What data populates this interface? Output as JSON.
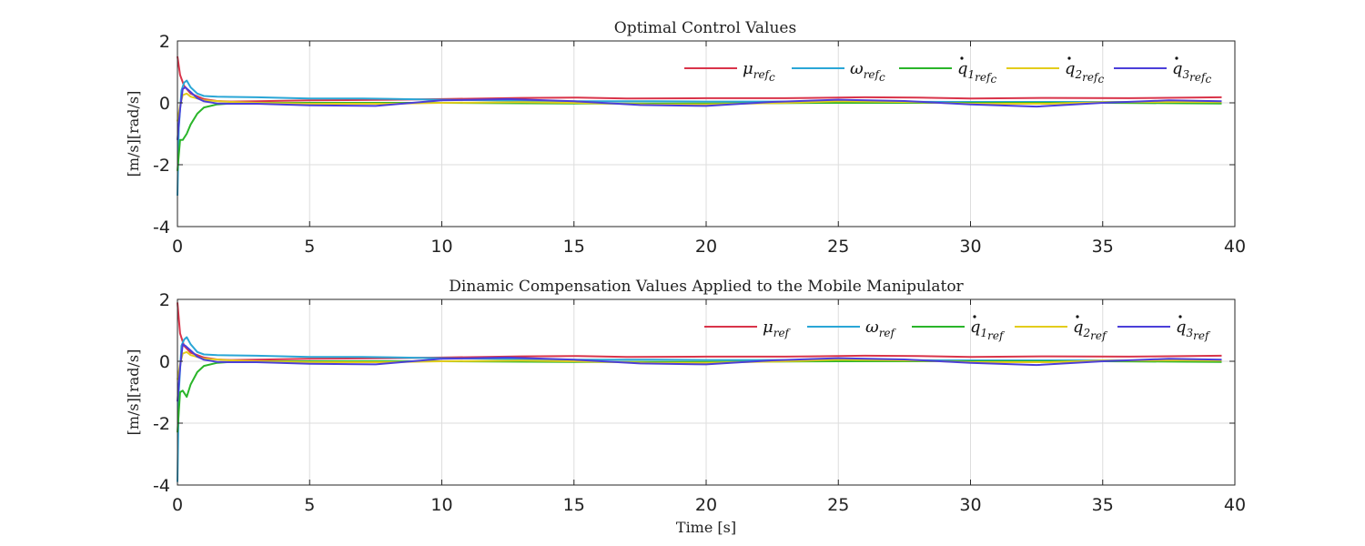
{
  "chart_data": [
    {
      "type": "line",
      "title": "Optimal Control Values",
      "xlabel": "",
      "ylabel": "[m/s][rad/s]",
      "xlim": [
        0,
        40
      ],
      "ylim": [
        -4,
        2
      ],
      "xticks": [
        "0",
        "5",
        "10",
        "15",
        "20",
        "25",
        "30",
        "35",
        "40"
      ],
      "yticks": [
        "2",
        "0",
        "-2",
        "-4"
      ],
      "grid": true,
      "legend": "top-right",
      "series": [
        {
          "name": "μ",
          "sub": "ref",
          "subsub": "c",
          "dot": false,
          "color": "#d9344a",
          "x": [
            0,
            0.1,
            0.25,
            0.5,
            1,
            1.5,
            2,
            3,
            5,
            8,
            10,
            13,
            15,
            17,
            20,
            23,
            26,
            28,
            30,
            33,
            36,
            39.5
          ],
          "y": [
            1.5,
            0.9,
            0.55,
            0.3,
            0.12,
            0.06,
            0.04,
            0.05,
            0.08,
            0.1,
            0.12,
            0.16,
            0.17,
            0.14,
            0.15,
            0.15,
            0.18,
            0.17,
            0.14,
            0.16,
            0.15,
            0.18
          ]
        },
        {
          "name": "ω",
          "sub": "ref",
          "subsub": "c",
          "dot": false,
          "color": "#2aa6d6",
          "x": [
            0,
            0.05,
            0.15,
            0.25,
            0.35,
            0.5,
            0.75,
            1,
            1.5,
            2,
            3,
            5,
            7,
            8,
            10,
            13,
            15,
            18,
            20,
            25,
            30,
            35,
            39.5
          ],
          "y": [
            -3.0,
            -0.8,
            0.4,
            0.65,
            0.72,
            0.5,
            0.3,
            0.22,
            0.2,
            0.19,
            0.18,
            0.14,
            0.14,
            0.13,
            0.1,
            0.07,
            0.05,
            0.05,
            0.04,
            0.04,
            0.03,
            0.03,
            0.03
          ]
        },
        {
          "name": "q",
          "sub": "1",
          "subsub": "ref",
          "subsubsub": "c",
          "dot": true,
          "color": "#2ab52a",
          "x": [
            0,
            0.1,
            0.2,
            0.35,
            0.5,
            0.75,
            1,
            1.5,
            2,
            3,
            5,
            10,
            15,
            20,
            25,
            30,
            35,
            39.5
          ],
          "y": [
            -2.2,
            -1.2,
            -1.2,
            -1.0,
            -0.7,
            -0.35,
            -0.15,
            -0.05,
            -0.02,
            0.0,
            0.0,
            0.0,
            -0.02,
            -0.02,
            0.0,
            0.0,
            0.0,
            -0.02
          ]
        },
        {
          "name": "q",
          "sub": "2",
          "subsub": "ref",
          "subsubsub": "c",
          "dot": true,
          "color": "#e3cc1c",
          "x": [
            0,
            0.1,
            0.2,
            0.35,
            0.5,
            1,
            2,
            3,
            5,
            8,
            10,
            13,
            15,
            18,
            20,
            23,
            25,
            28,
            30,
            33,
            35,
            38,
            39.5
          ],
          "y": [
            -0.6,
            -0.1,
            0.25,
            0.3,
            0.2,
            0.08,
            0.03,
            0.0,
            -0.03,
            -0.03,
            0.0,
            0.02,
            0.0,
            -0.05,
            -0.05,
            0.0,
            0.05,
            0.02,
            -0.03,
            -0.03,
            0.02,
            0.03,
            0.02
          ]
        },
        {
          "name": "q",
          "sub": "3",
          "subsub": "ref",
          "subsubsub": "c",
          "dot": true,
          "color": "#4b3fd9",
          "x": [
            0,
            0.1,
            0.2,
            0.3,
            0.5,
            0.75,
            1,
            1.5,
            2,
            3,
            5,
            7.5,
            10,
            12.5,
            15,
            17.5,
            20,
            22.5,
            25,
            27.5,
            30,
            32.5,
            35,
            37.5,
            39.5
          ],
          "y": [
            -1.2,
            -0.2,
            0.45,
            0.5,
            0.35,
            0.15,
            0.05,
            -0.02,
            -0.03,
            -0.03,
            -0.08,
            -0.1,
            0.08,
            0.12,
            0.05,
            -0.07,
            -0.1,
            0.03,
            0.1,
            0.06,
            -0.05,
            -0.12,
            0.0,
            0.08,
            0.05
          ]
        }
      ]
    },
    {
      "type": "line",
      "title": "Dinamic Compensation Values Applied to the Mobile Manipulator",
      "xlabel": "Time [s]",
      "ylabel": "[m/s][rad/s]",
      "xlim": [
        0,
        40
      ],
      "ylim": [
        -4,
        2
      ],
      "xticks": [
        "0",
        "5",
        "10",
        "15",
        "20",
        "25",
        "30",
        "35",
        "40"
      ],
      "yticks": [
        "2",
        "0",
        "-2",
        "-4"
      ],
      "grid": true,
      "legend": "top-right",
      "series": [
        {
          "name": "μ",
          "sub": "ref",
          "dot": false,
          "color": "#d9344a",
          "x": [
            0,
            0.1,
            0.25,
            0.5,
            1,
            1.5,
            2,
            3,
            5,
            8,
            10,
            13,
            15,
            17,
            20,
            23,
            26,
            28,
            30,
            33,
            36,
            39.5
          ],
          "y": [
            1.9,
            0.9,
            0.5,
            0.28,
            0.12,
            0.06,
            0.04,
            0.05,
            0.08,
            0.1,
            0.12,
            0.16,
            0.17,
            0.14,
            0.15,
            0.15,
            0.18,
            0.17,
            0.14,
            0.16,
            0.15,
            0.18
          ]
        },
        {
          "name": "ω",
          "sub": "ref",
          "dot": false,
          "color": "#2aa6d6",
          "x": [
            0,
            0.05,
            0.15,
            0.25,
            0.35,
            0.5,
            0.75,
            1,
            1.5,
            2,
            3,
            5,
            7,
            8,
            10,
            13,
            15,
            18,
            20,
            25,
            30,
            35,
            39.5
          ],
          "y": [
            -3.9,
            -1.0,
            0.5,
            0.7,
            0.78,
            0.55,
            0.3,
            0.22,
            0.2,
            0.19,
            0.18,
            0.14,
            0.14,
            0.13,
            0.1,
            0.07,
            0.05,
            0.05,
            0.04,
            0.04,
            0.03,
            0.03,
            0.03
          ]
        },
        {
          "name": "q",
          "sub": "1",
          "subsub": "ref",
          "dot": true,
          "color": "#2ab52a",
          "x": [
            0,
            0.1,
            0.2,
            0.35,
            0.5,
            0.75,
            1,
            1.5,
            2,
            3,
            5,
            10,
            15,
            20,
            25,
            30,
            35,
            39.5
          ],
          "y": [
            -2.3,
            -1.0,
            -0.95,
            -1.15,
            -0.75,
            -0.35,
            -0.15,
            -0.05,
            -0.02,
            0.0,
            0.0,
            0.0,
            -0.02,
            -0.02,
            0.0,
            0.0,
            0.0,
            -0.02
          ]
        },
        {
          "name": "q",
          "sub": "2",
          "subsub": "ref",
          "dot": true,
          "color": "#e3cc1c",
          "x": [
            0,
            0.1,
            0.2,
            0.35,
            0.5,
            1,
            2,
            3,
            5,
            8,
            10,
            13,
            15,
            18,
            20,
            23,
            25,
            28,
            30,
            33,
            35,
            38,
            39.5
          ],
          "y": [
            -0.6,
            -0.1,
            0.25,
            0.3,
            0.2,
            0.08,
            0.03,
            0.0,
            -0.03,
            -0.03,
            0.0,
            0.02,
            0.0,
            -0.05,
            -0.05,
            0.0,
            0.05,
            0.02,
            -0.03,
            -0.03,
            0.02,
            0.03,
            0.02
          ]
        },
        {
          "name": "q",
          "sub": "3",
          "subsub": "ref",
          "dot": true,
          "color": "#4b3fd9",
          "x": [
            0,
            0.1,
            0.2,
            0.3,
            0.5,
            0.75,
            1,
            1.5,
            2,
            3,
            5,
            7.5,
            10,
            12.5,
            15,
            17.5,
            20,
            22.5,
            25,
            27.5,
            30,
            32.5,
            35,
            37.5,
            39.5
          ],
          "y": [
            -1.3,
            -0.2,
            0.55,
            0.5,
            0.35,
            0.15,
            0.05,
            -0.02,
            -0.03,
            -0.03,
            -0.08,
            -0.1,
            0.08,
            0.12,
            0.05,
            -0.07,
            -0.1,
            0.03,
            0.1,
            0.06,
            -0.05,
            -0.12,
            0.0,
            0.08,
            0.05
          ]
        }
      ]
    }
  ]
}
